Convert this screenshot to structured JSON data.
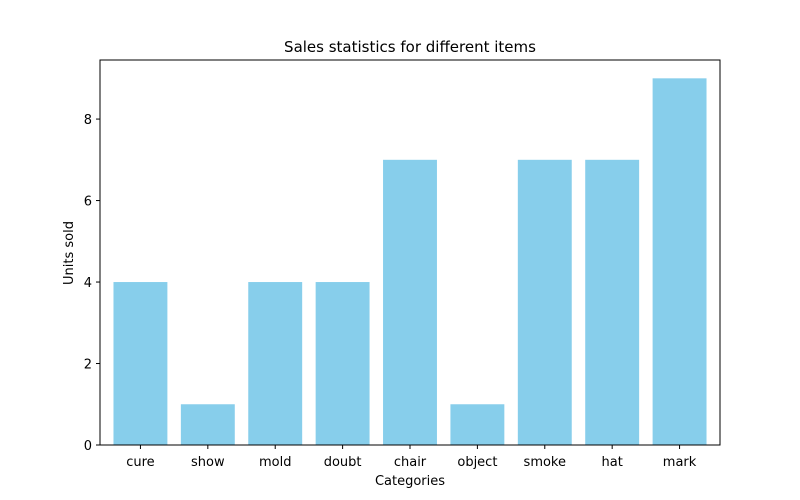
{
  "chart_data": {
    "type": "bar",
    "title": "Sales statistics for different items",
    "xlabel": "Categories",
    "ylabel": "Units sold",
    "categories": [
      "cure",
      "show",
      "mold",
      "doubt",
      "chair",
      "object",
      "smoke",
      "hat",
      "mark"
    ],
    "values": [
      4,
      1,
      4,
      4,
      7,
      1,
      7,
      7,
      9
    ],
    "ylim": [
      0,
      9.45
    ],
    "yticks": [
      0,
      2,
      4,
      6,
      8
    ],
    "grid": false,
    "legend": "none",
    "colors": {
      "bar": "#87ceeb",
      "axis": "#000000",
      "background": "#ffffff"
    }
  }
}
